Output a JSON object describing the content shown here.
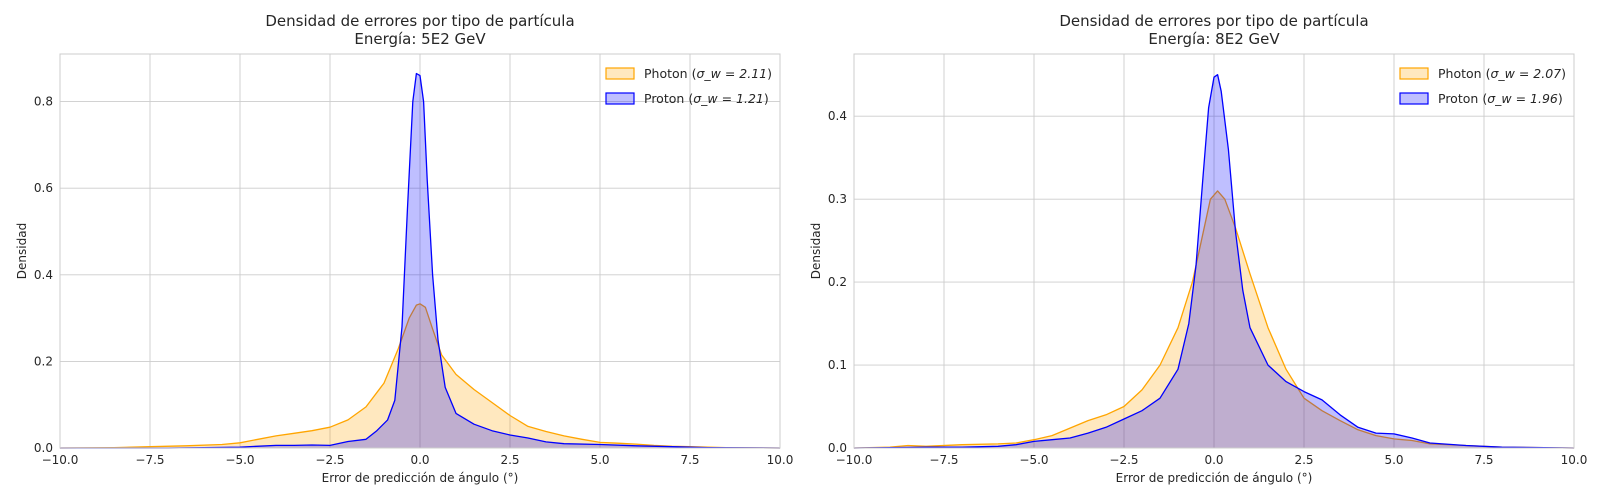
{
  "chart_data": [
    {
      "type": "area",
      "title": "Densidad de errores por tipo de partícula",
      "subtitle": "Energía: 5E2 GeV",
      "xlabel": "Error de predicción de ángulo (°)",
      "ylabel": "Densidad",
      "xlim": [
        -10,
        10
      ],
      "ylim": [
        0,
        0.91
      ],
      "xticks": [
        -10,
        -7.5,
        -5,
        -2.5,
        0,
        2.5,
        5,
        7.5,
        10
      ],
      "xtick_labels": [
        "−10.0",
        "−7.5",
        "−5.0",
        "−2.5",
        "0.0",
        "2.5",
        "5.0",
        "7.5",
        "10.0"
      ],
      "yticks": [
        0,
        0.2,
        0.4,
        0.6,
        0.8
      ],
      "ytick_labels": [
        "0.0",
        "0.2",
        "0.4",
        "0.6",
        "0.8"
      ],
      "grid": true,
      "legend_position": "top-right",
      "series": [
        {
          "name": "Photon",
          "sigma_label": "σ_w = 2.11",
          "color": "#ffa500",
          "fill": "#ffa500",
          "fill_opacity": 0.25,
          "points": [
            [
              -10,
              0
            ],
            [
              -8.5,
              0.001
            ],
            [
              -7.5,
              0.003
            ],
            [
              -6.5,
              0.005
            ],
            [
              -5.5,
              0.008
            ],
            [
              -5,
              0.012
            ],
            [
              -4.5,
              0.02
            ],
            [
              -4,
              0.028
            ],
            [
              -3.5,
              0.034
            ],
            [
              -3,
              0.04
            ],
            [
              -2.5,
              0.048
            ],
            [
              -2,
              0.065
            ],
            [
              -1.5,
              0.095
            ],
            [
              -1,
              0.15
            ],
            [
              -0.6,
              0.23
            ],
            [
              -0.3,
              0.3
            ],
            [
              -0.1,
              0.33
            ],
            [
              0,
              0.333
            ],
            [
              0.15,
              0.325
            ],
            [
              0.35,
              0.275
            ],
            [
              0.6,
              0.215
            ],
            [
              1,
              0.17
            ],
            [
              1.5,
              0.135
            ],
            [
              2,
              0.105
            ],
            [
              2.5,
              0.075
            ],
            [
              3,
              0.05
            ],
            [
              3.5,
              0.038
            ],
            [
              4,
              0.028
            ],
            [
              4.5,
              0.02
            ],
            [
              5,
              0.013
            ],
            [
              5.5,
              0.011
            ],
            [
              6,
              0.009
            ],
            [
              6.5,
              0.006
            ],
            [
              7,
              0.004
            ],
            [
              7.5,
              0.003
            ],
            [
              8.5,
              0.001
            ],
            [
              10,
              0
            ]
          ]
        },
        {
          "name": "Proton",
          "sigma_label": "σ_w = 1.21",
          "color": "#0000ff",
          "fill": "#0000ff",
          "fill_opacity": 0.25,
          "points": [
            [
              -10,
              0
            ],
            [
              -7,
              0
            ],
            [
              -6,
              0.001
            ],
            [
              -5,
              0.002
            ],
            [
              -4,
              0.006
            ],
            [
              -3.5,
              0.006
            ],
            [
              -3,
              0.007
            ],
            [
              -2.5,
              0.006
            ],
            [
              -2,
              0.015
            ],
            [
              -1.5,
              0.02
            ],
            [
              -1.2,
              0.04
            ],
            [
              -0.9,
              0.065
            ],
            [
              -0.7,
              0.11
            ],
            [
              -0.5,
              0.28
            ],
            [
              -0.35,
              0.55
            ],
            [
              -0.2,
              0.8
            ],
            [
              -0.1,
              0.865
            ],
            [
              0,
              0.86
            ],
            [
              0.1,
              0.8
            ],
            [
              0.2,
              0.62
            ],
            [
              0.35,
              0.4
            ],
            [
              0.5,
              0.25
            ],
            [
              0.7,
              0.14
            ],
            [
              1,
              0.08
            ],
            [
              1.5,
              0.055
            ],
            [
              2,
              0.04
            ],
            [
              2.5,
              0.03
            ],
            [
              3,
              0.023
            ],
            [
              3.5,
              0.014
            ],
            [
              4,
              0.01
            ],
            [
              5,
              0.008
            ],
            [
              6,
              0.005
            ],
            [
              7,
              0.003
            ],
            [
              8,
              0.001
            ],
            [
              10,
              0
            ]
          ]
        }
      ]
    },
    {
      "type": "area",
      "title": "Densidad de errores por tipo de partícula",
      "subtitle": "Energía: 8E2 GeV",
      "xlabel": "Error de predicción de ángulo (°)",
      "ylabel": "Densidad",
      "xlim": [
        -10,
        10
      ],
      "ylim": [
        0,
        0.475
      ],
      "xticks": [
        -10,
        -7.5,
        -5,
        -2.5,
        0,
        2.5,
        5,
        7.5,
        10
      ],
      "xtick_labels": [
        "−10.0",
        "−7.5",
        "−5.0",
        "−2.5",
        "0.0",
        "2.5",
        "5.0",
        "7.5",
        "10.0"
      ],
      "yticks": [
        0,
        0.1,
        0.2,
        0.3,
        0.4
      ],
      "ytick_labels": [
        "0.0",
        "0.1",
        "0.2",
        "0.3",
        "0.4"
      ],
      "grid": true,
      "legend_position": "top-right",
      "series": [
        {
          "name": "Photon",
          "sigma_label": "σ_w = 2.07",
          "color": "#ffa500",
          "fill": "#ffa500",
          "fill_opacity": 0.25,
          "points": [
            [
              -10,
              0
            ],
            [
              -9,
              0.001
            ],
            [
              -8.5,
              0.003
            ],
            [
              -8,
              0.002
            ],
            [
              -7,
              0.004
            ],
            [
              -6,
              0.005
            ],
            [
              -5.5,
              0.006
            ],
            [
              -5,
              0.01
            ],
            [
              -4.5,
              0.015
            ],
            [
              -4,
              0.024
            ],
            [
              -3.5,
              0.033
            ],
            [
              -3,
              0.04
            ],
            [
              -2.5,
              0.05
            ],
            [
              -2,
              0.07
            ],
            [
              -1.5,
              0.1
            ],
            [
              -1,
              0.145
            ],
            [
              -0.6,
              0.2
            ],
            [
              -0.3,
              0.26
            ],
            [
              -0.1,
              0.3
            ],
            [
              0.1,
              0.31
            ],
            [
              0.3,
              0.3
            ],
            [
              0.6,
              0.265
            ],
            [
              1,
              0.21
            ],
            [
              1.5,
              0.145
            ],
            [
              2,
              0.095
            ],
            [
              2.5,
              0.06
            ],
            [
              3,
              0.045
            ],
            [
              3.5,
              0.033
            ],
            [
              4,
              0.022
            ],
            [
              4.5,
              0.015
            ],
            [
              5,
              0.011
            ],
            [
              5.5,
              0.009
            ],
            [
              6,
              0.005
            ],
            [
              7,
              0.003
            ],
            [
              8,
              0.001
            ],
            [
              10,
              0
            ]
          ]
        },
        {
          "name": "Proton",
          "sigma_label": "σ_w = 1.96",
          "color": "#0000ff",
          "fill": "#0000ff",
          "fill_opacity": 0.25,
          "points": [
            [
              -10,
              0
            ],
            [
              -8,
              0.001
            ],
            [
              -7,
              0.001
            ],
            [
              -6,
              0.002
            ],
            [
              -5.5,
              0.004
            ],
            [
              -5,
              0.008
            ],
            [
              -4.5,
              0.01
            ],
            [
              -4,
              0.012
            ],
            [
              -3.5,
              0.018
            ],
            [
              -3,
              0.025
            ],
            [
              -2.5,
              0.035
            ],
            [
              -2,
              0.045
            ],
            [
              -1.5,
              0.06
            ],
            [
              -1,
              0.095
            ],
            [
              -0.7,
              0.15
            ],
            [
              -0.5,
              0.22
            ],
            [
              -0.3,
              0.33
            ],
            [
              -0.15,
              0.41
            ],
            [
              0,
              0.447
            ],
            [
              0.1,
              0.45
            ],
            [
              0.2,
              0.43
            ],
            [
              0.4,
              0.36
            ],
            [
              0.6,
              0.26
            ],
            [
              0.8,
              0.19
            ],
            [
              1,
              0.145
            ],
            [
              1.5,
              0.1
            ],
            [
              2,
              0.08
            ],
            [
              2.5,
              0.068
            ],
            [
              3,
              0.058
            ],
            [
              3.5,
              0.04
            ],
            [
              4,
              0.025
            ],
            [
              4.5,
              0.018
            ],
            [
              5,
              0.017
            ],
            [
              5.5,
              0.012
            ],
            [
              6,
              0.006
            ],
            [
              7,
              0.003
            ],
            [
              8,
              0.001
            ],
            [
              10,
              0
            ]
          ]
        }
      ]
    }
  ]
}
